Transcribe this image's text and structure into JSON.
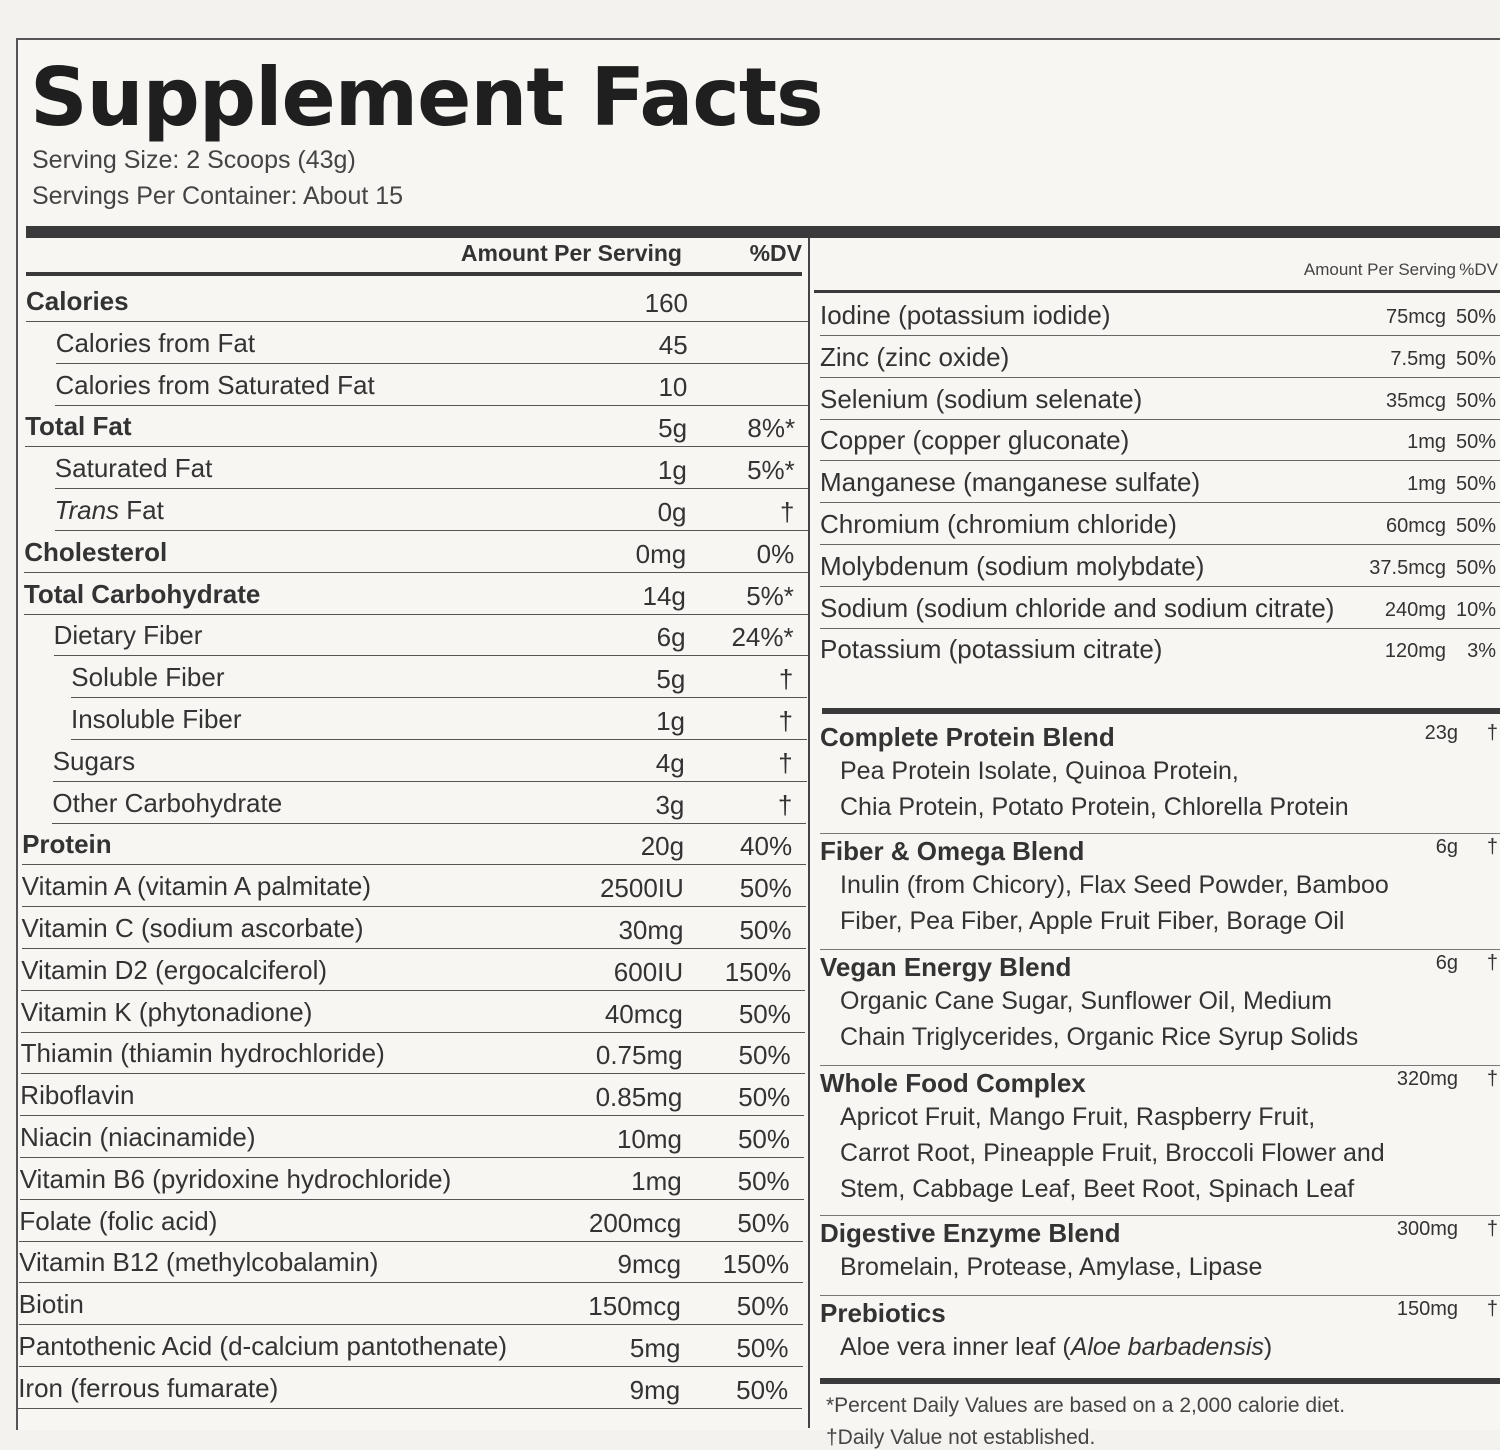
{
  "title": "Supplement Facts",
  "serving_size": "Serving Size: 2 Scoops (43g)",
  "servings_per_container": "Servings Per Container: About 15",
  "left_header": {
    "amount": "Amount Per Serving",
    "dv": "%DV"
  },
  "left_rows": [
    {
      "name": "Calories",
      "amount": "160",
      "dv": "",
      "bold": true,
      "indent": 0
    },
    {
      "name": "Calories from Fat",
      "amount": "45",
      "dv": "",
      "bold": false,
      "indent": 1
    },
    {
      "name": "Calories from Saturated Fat",
      "amount": "10",
      "dv": "",
      "bold": false,
      "indent": 1
    },
    {
      "name": "Total Fat",
      "amount": "5g",
      "dv": "8%*",
      "bold": true,
      "indent": 0
    },
    {
      "name": "Saturated Fat",
      "amount": "1g",
      "dv": "5%*",
      "bold": false,
      "indent": 1
    },
    {
      "name": "Trans Fat",
      "amount": "0g",
      "dv": "†",
      "bold": false,
      "indent": 1,
      "italic_word": true
    },
    {
      "name": "Cholesterol",
      "amount": "0mg",
      "dv": "0%",
      "bold": true,
      "indent": 0
    },
    {
      "name": "Total Carbohydrate",
      "amount": "14g",
      "dv": "5%*",
      "bold": true,
      "indent": 0
    },
    {
      "name": "Dietary Fiber",
      "amount": "6g",
      "dv": "24%*",
      "bold": false,
      "indent": 1
    },
    {
      "name": "Soluble Fiber",
      "amount": "5g",
      "dv": "†",
      "bold": false,
      "indent": 2
    },
    {
      "name": "Insoluble Fiber",
      "amount": "1g",
      "dv": "†",
      "bold": false,
      "indent": 2
    },
    {
      "name": "Sugars",
      "amount": "4g",
      "dv": "†",
      "bold": false,
      "indent": 1
    },
    {
      "name": "Other Carbohydrate",
      "amount": "3g",
      "dv": "†",
      "bold": false,
      "indent": 1
    },
    {
      "name": "Protein",
      "amount": "20g",
      "dv": "40%",
      "bold": true,
      "indent": 0
    },
    {
      "name": "Vitamin A (vitamin A palmitate)",
      "amount": "2500IU",
      "dv": "50%",
      "bold": false,
      "indent": 0
    },
    {
      "name": "Vitamin C (sodium ascorbate)",
      "amount": "30mg",
      "dv": "50%",
      "bold": false,
      "indent": 0
    },
    {
      "name": "Vitamin D2 (ergocalciferol)",
      "amount": "600IU",
      "dv": "150%",
      "bold": false,
      "indent": 0
    },
    {
      "name": "Vitamin K (phytonadione)",
      "amount": "40mcg",
      "dv": "50%",
      "bold": false,
      "indent": 0
    },
    {
      "name": "Thiamin (thiamin hydrochloride)",
      "amount": "0.75mg",
      "dv": "50%",
      "bold": false,
      "indent": 0
    },
    {
      "name": "Riboflavin",
      "amount": "0.85mg",
      "dv": "50%",
      "bold": false,
      "indent": 0
    },
    {
      "name": "Niacin (niacinamide)",
      "amount": "10mg",
      "dv": "50%",
      "bold": false,
      "indent": 0
    },
    {
      "name": "Vitamin B6 (pyridoxine hydrochloride)",
      "amount": "1mg",
      "dv": "50%",
      "bold": false,
      "indent": 0
    },
    {
      "name": "Folate (folic acid)",
      "amount": "200mcg",
      "dv": "50%",
      "bold": false,
      "indent": 0
    },
    {
      "name": "Vitamin B12 (methylcobalamin)",
      "amount": "9mcg",
      "dv": "150%",
      "bold": false,
      "indent": 0
    },
    {
      "name": "Biotin",
      "amount": "150mcg",
      "dv": "50%",
      "bold": false,
      "indent": 0
    },
    {
      "name": "Pantothenic Acid (d-calcium pantothenate)",
      "amount": "5mg",
      "dv": "50%",
      "bold": false,
      "indent": 0
    },
    {
      "name": "Iron (ferrous fumarate)",
      "amount": "9mg",
      "dv": "50%",
      "bold": false,
      "indent": 0
    }
  ],
  "right_header": {
    "amount": "Amount Per Serving",
    "dv": "%DV"
  },
  "right_rows": [
    {
      "name": "Iodine (potassium iodide)",
      "amount": "75mcg",
      "dv": "50%"
    },
    {
      "name": "Zinc (zinc oxide)",
      "amount": "7.5mg",
      "dv": "50%"
    },
    {
      "name": "Selenium (sodium selenate)",
      "amount": "35mcg",
      "dv": "50%"
    },
    {
      "name": "Copper (copper gluconate)",
      "amount": "1mg",
      "dv": "50%"
    },
    {
      "name": "Manganese (manganese sulfate)",
      "amount": "1mg",
      "dv": "50%"
    },
    {
      "name": "Chromium (chromium chloride)",
      "amount": "60mcg",
      "dv": "50%"
    },
    {
      "name": "Molybdenum (sodium molybdate)",
      "amount": "37.5mcg",
      "dv": "50%"
    },
    {
      "name": "Sodium (sodium chloride and sodium citrate)",
      "amount": "240mg",
      "dv": "10%"
    },
    {
      "name": "Potassium (potassium citrate)",
      "amount": "120mg",
      "dv": "3%"
    }
  ],
  "blends": [
    {
      "name": "Complete Protein Blend",
      "amount": "23g",
      "dv": "†",
      "ingredients": [
        "Pea Protein Isolate, Quinoa Protein,",
        "Chia Protein, Potato Protein, Chlorella Protein"
      ]
    },
    {
      "name": "Fiber & Omega Blend",
      "amount": "6g",
      "dv": "†",
      "ingredients": [
        "Inulin (from Chicory), Flax Seed Powder, Bamboo",
        "Fiber, Pea Fiber, Apple Fruit Fiber, Borage Oil"
      ]
    },
    {
      "name": "Vegan Energy Blend",
      "amount": "6g",
      "dv": "†",
      "ingredients": [
        "Organic Cane Sugar, Sunflower Oil, Medium",
        "Chain Triglycerides, Organic Rice Syrup Solids"
      ]
    },
    {
      "name": "Whole Food Complex",
      "amount": "320mg",
      "dv": "†",
      "ingredients": [
        "Apricot Fruit, Mango Fruit, Raspberry Fruit,",
        "Carrot Root, Pineapple Fruit, Broccoli Flower and",
        "Stem, Cabbage Leaf, Beet Root, Spinach Leaf"
      ]
    },
    {
      "name": "Digestive Enzyme Blend",
      "amount": "300mg",
      "dv": "†",
      "ingredients": [
        "Bromelain, Protease, Amylase, Lipase"
      ]
    },
    {
      "name": "Prebiotics",
      "amount": "150mg",
      "dv": "†",
      "ingredients": [
        "Aloe vera inner leaf (Aloe barbadensis)"
      ]
    }
  ],
  "footnotes": {
    "percent_note": "*Percent Daily Values are based on a 2,000 calorie diet.",
    "dagger_note": "†Daily Value not established."
  }
}
